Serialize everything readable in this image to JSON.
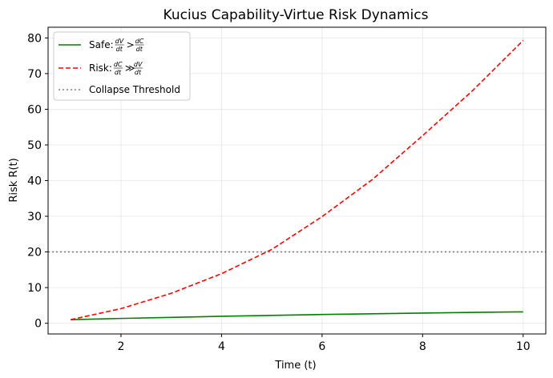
{
  "chart_data": {
    "type": "line",
    "title": "Kucius Capability-Virtue Risk Dynamics",
    "xlabel": "Time (t)",
    "ylabel": "Risk R(t)",
    "xlim": [
      0.55,
      10.45
    ],
    "ylim": [
      -3.0,
      83.0
    ],
    "xticks": [
      2,
      4,
      6,
      8,
      10
    ],
    "yticks": [
      0,
      10,
      20,
      30,
      40,
      50,
      60,
      70,
      80
    ],
    "grid": true,
    "legend_position": "top-left",
    "series": [
      {
        "name": "Safe",
        "legend_prefix": "Safe: ",
        "legend_math": [
          "dV",
          "dt",
          ">",
          "dC",
          "dt"
        ],
        "color": "#008000",
        "style": "solid",
        "x": [
          1,
          2,
          3,
          4,
          5,
          6,
          7,
          8,
          9,
          10
        ],
        "y": [
          1.0,
          1.35,
          1.65,
          1.95,
          2.2,
          2.45,
          2.65,
          2.85,
          3.05,
          3.2
        ]
      },
      {
        "name": "Risk",
        "legend_prefix": "Risk: ",
        "legend_math": [
          "dC",
          "dt",
          "≫",
          "dV",
          "dt"
        ],
        "color": "#ff0000",
        "style": "dashed",
        "x": [
          1,
          2,
          3,
          4,
          5,
          6,
          7,
          8,
          9,
          10
        ],
        "y": [
          1.0,
          4.1,
          8.4,
          13.9,
          20.7,
          29.9,
          40.3,
          52.6,
          65.3,
          79.3
        ]
      }
    ],
    "hlines": [
      {
        "name": "Collapse Threshold",
        "y": 20,
        "color": "#808080",
        "style": "dotted"
      }
    ]
  }
}
